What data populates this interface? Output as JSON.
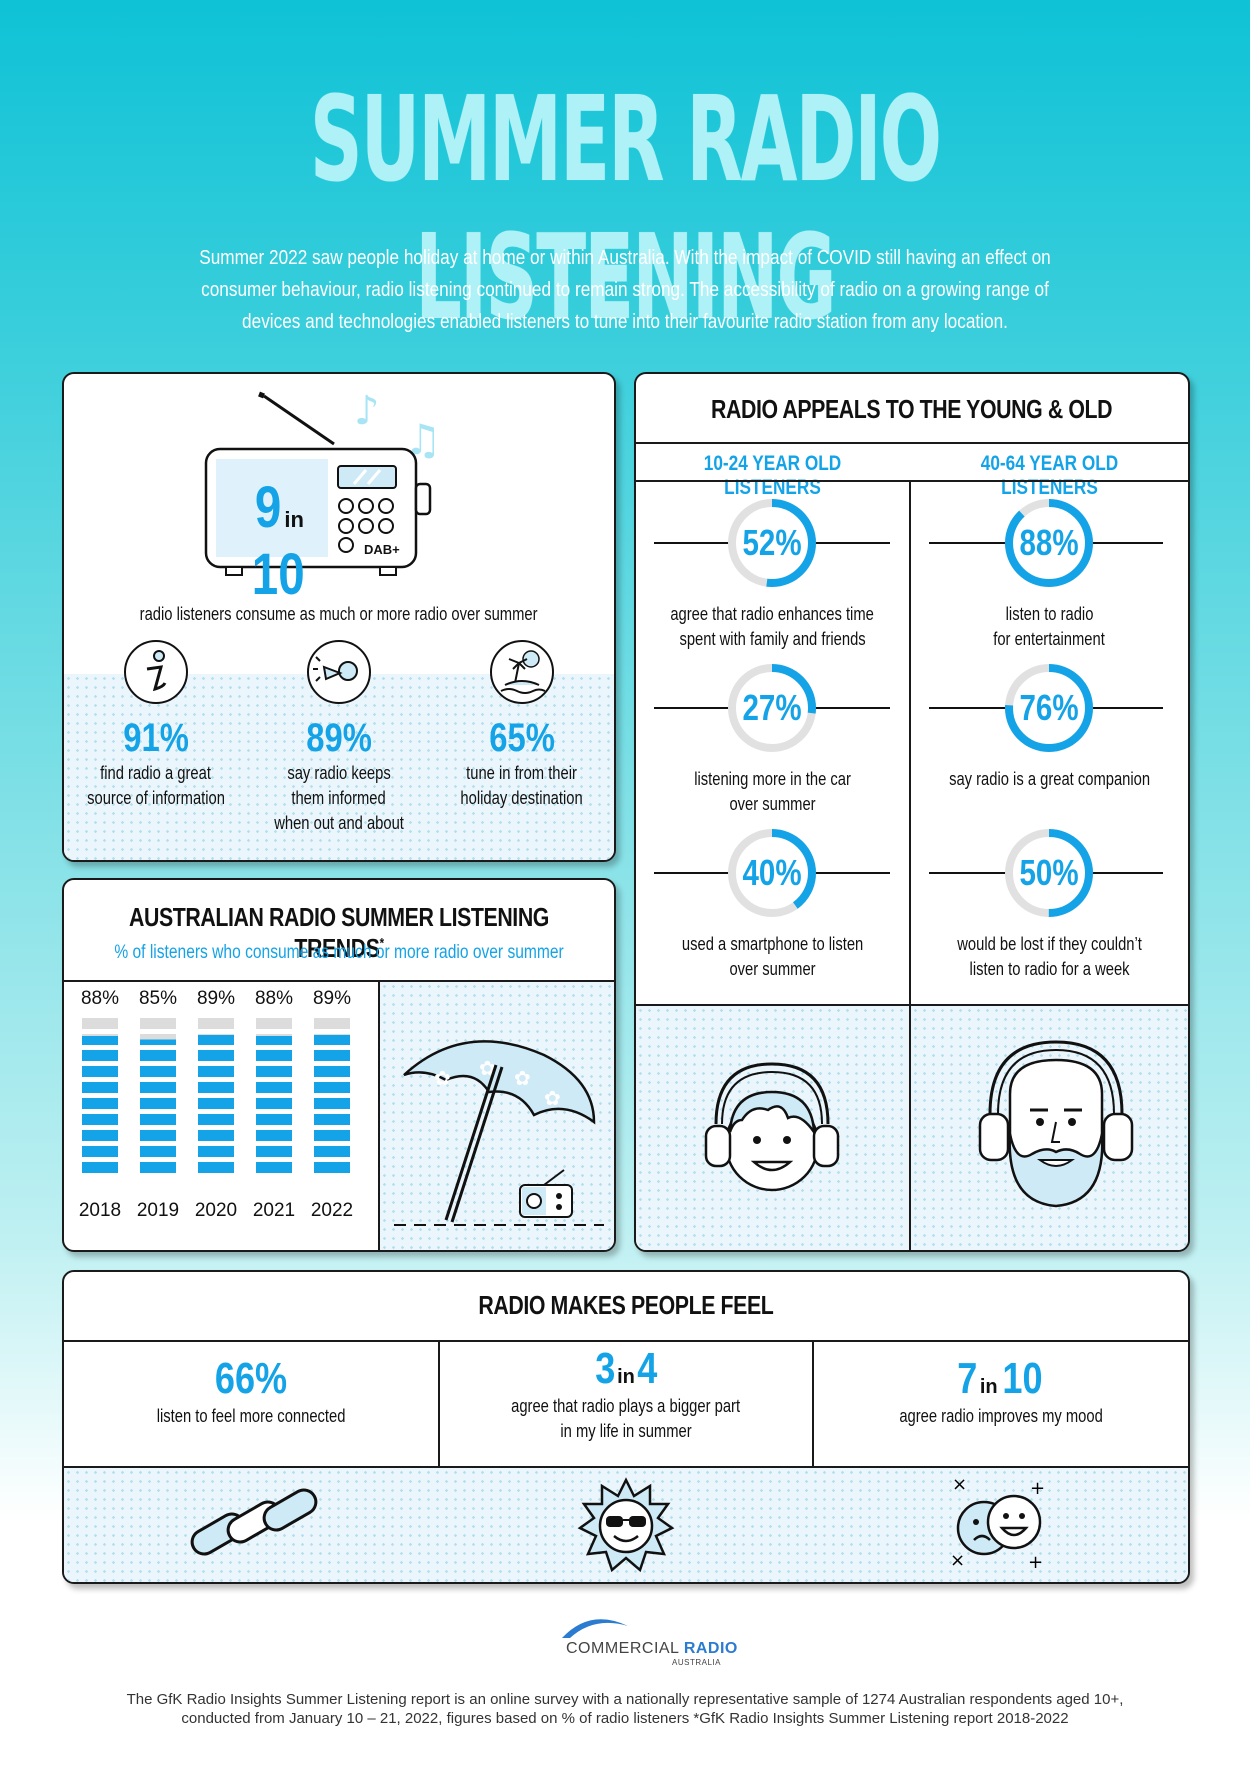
{
  "title": "SUMMER RADIO LISTENING",
  "intro": "Summer 2022 saw people holiday at home or within Australia. With the impact of COVID still having an effect on consumer behaviour,  radio listening continued to remain strong. The accessibility of radio on a growing range of devices and technologies enabled listeners to tune into their favourite radio station from any location.",
  "hero": {
    "num": "9",
    "in": "in",
    "den": "10",
    "dab": "DAB+",
    "caption": "radio listeners consume as much or more radio over summer"
  },
  "hero_stats": [
    {
      "value": "91%",
      "text1": "find radio a great",
      "text2": "source of information",
      "text3": "",
      "icon": "info-icon"
    },
    {
      "value": "89%",
      "text1": "say radio keeps",
      "text2": "them informed",
      "text3": "when out and about",
      "icon": "megaphone-icon"
    },
    {
      "value": "65%",
      "text1": "tune in from their",
      "text2": "holiday destination",
      "text3": "",
      "icon": "island-icon"
    }
  ],
  "trends": {
    "title": "AUSTRALIAN RADIO SUMMER LISTENING TRENDS",
    "title_mark": "*",
    "subtitle": "% of listeners who consume as much or more radio over summer"
  },
  "chart_data": {
    "type": "bar",
    "categories": [
      "2018",
      "2019",
      "2020",
      "2021",
      "2022"
    ],
    "values": [
      88,
      85,
      89,
      88,
      89
    ],
    "labels": [
      "88%",
      "85%",
      "89%",
      "88%",
      "89%"
    ],
    "ylim": [
      0,
      100
    ]
  },
  "appeals": {
    "title": "RADIO APPEALS TO THE YOUNG & OLD",
    "col_young": "10-24 YEAR OLD LISTENERS",
    "col_old": "40-64 YEAR OLD LISTENERS",
    "young": [
      {
        "value": "52%",
        "pct": 52,
        "text1": "agree that radio enhances time",
        "text2": "spent with family and friends"
      },
      {
        "value": "27%",
        "pct": 27,
        "text1": "listening more in the car",
        "text2": "over summer"
      },
      {
        "value": "40%",
        "pct": 40,
        "text1": "used a smartphone to listen",
        "text2": "over summer"
      }
    ],
    "old": [
      {
        "value": "88%",
        "pct": 88,
        "text1": "listen to radio",
        "text2": "for entertainment"
      },
      {
        "value": "76%",
        "pct": 76,
        "text1": "say radio is a great companion",
        "text2": ""
      },
      {
        "value": "50%",
        "pct": 50,
        "text1": "would be lost if they couldn’t",
        "text2": "listen to radio for a week"
      }
    ]
  },
  "feel": {
    "title": "RADIO MAKES PEOPLE FEEL",
    "items": [
      {
        "a": "66%",
        "in": "",
        "b": "",
        "text1": "listen to feel more connected",
        "text2": "",
        "icon": "chain-link-icon"
      },
      {
        "a": "3",
        "in": "in",
        "b": "4",
        "text1": "agree that radio plays a bigger part",
        "text2": "in my life in summer",
        "icon": "sun-sunglasses-icon"
      },
      {
        "a": "7",
        "in": "in",
        "b": "10",
        "text1": "agree radio improves my mood",
        "text2": "",
        "icon": "mood-faces-icon"
      }
    ]
  },
  "logo": {
    "line1": "COMMERCIAL",
    "line1b": "RADIO",
    "line2": "AUSTRALIA"
  },
  "footer": {
    "line1": "The GfK Radio Insights Summer Listening report is an online survey with a nationally representative sample of 1274 Australian respondents aged 10+,",
    "line2": "conducted from January 10 – 21, 2022,  figures based on % of radio listeners *GfK Radio Insights Summer Listening report 2018-2022"
  },
  "colors": {
    "accent": "#14a3e6",
    "title": "#aef1f6",
    "bg_top": "#0fc2d6"
  }
}
